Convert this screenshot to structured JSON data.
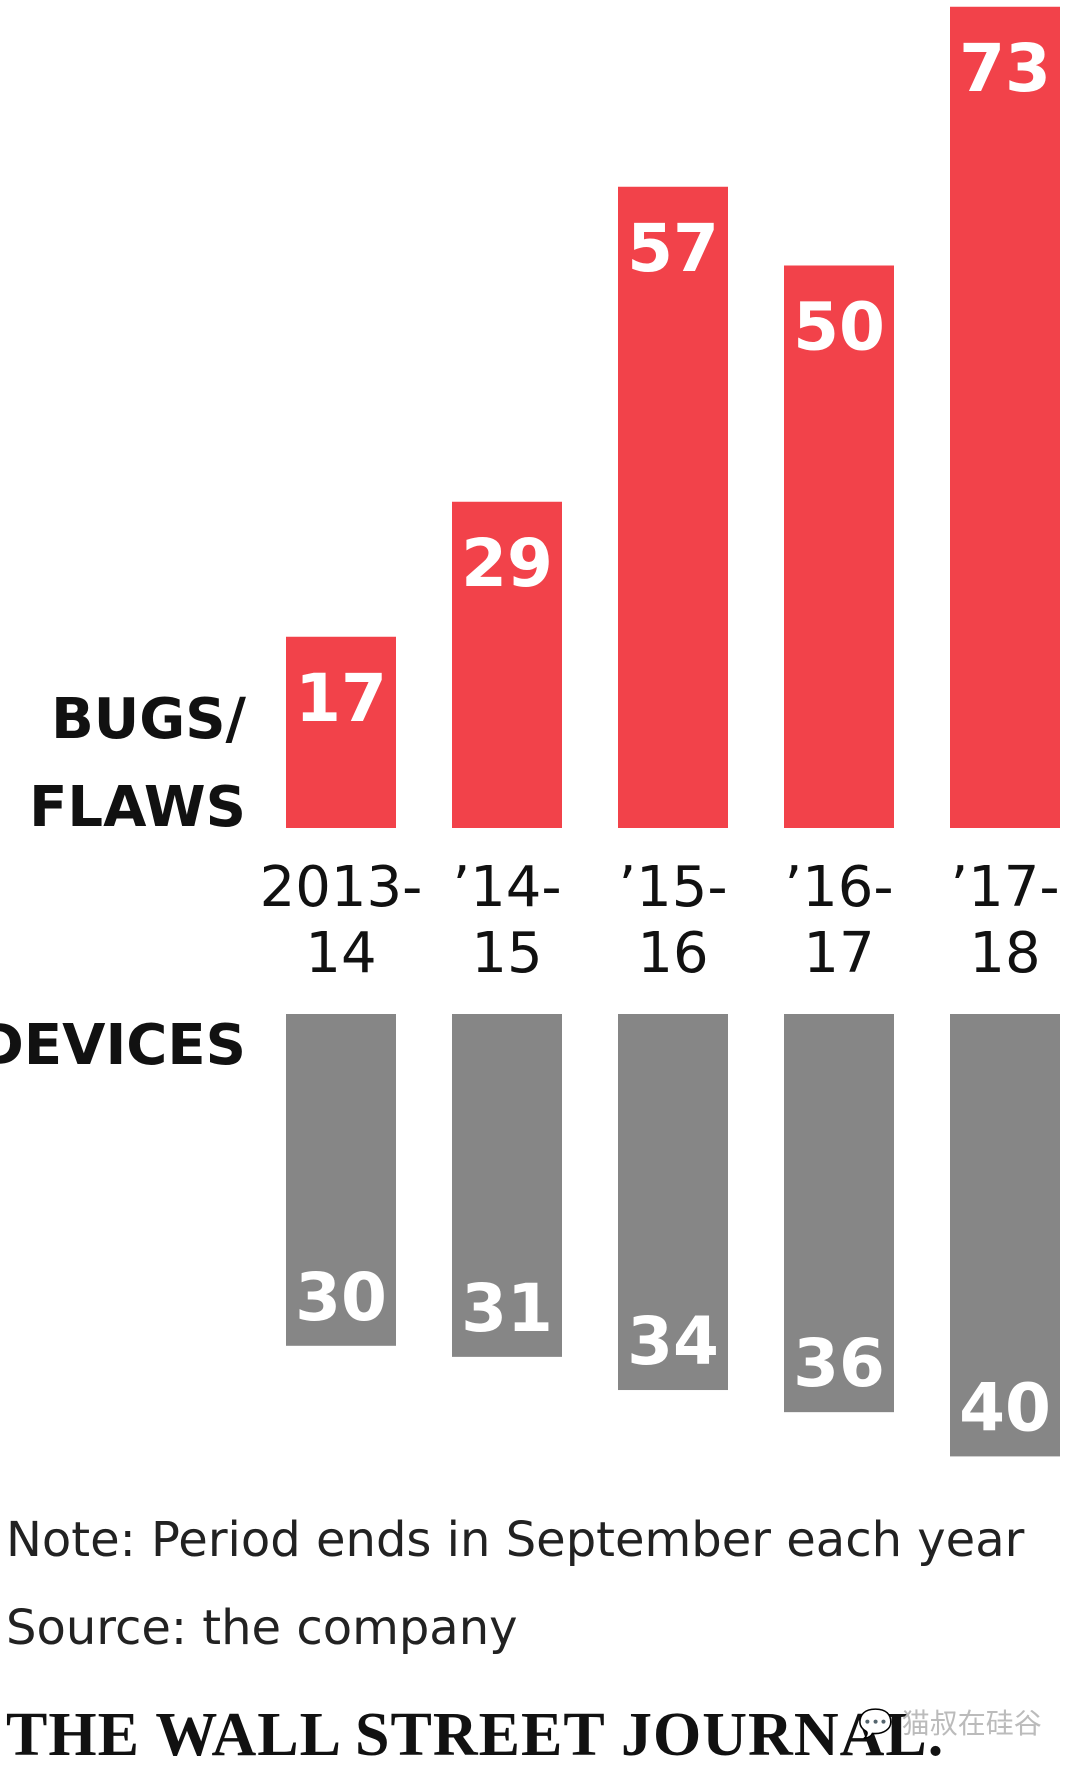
{
  "chart_data": {
    "type": "bar",
    "categories": [
      "2013-\n14",
      "’14-\n15",
      "’15-\n16",
      "’16-\n17",
      "’17-\n18"
    ],
    "series": [
      {
        "name": "BUGS/\nFLAWS",
        "values": [
          17,
          29,
          57,
          50,
          73
        ],
        "color": "#f2424a",
        "direction": "up"
      },
      {
        "name": "DEVICES",
        "values": [
          30,
          31,
          34,
          36,
          40
        ],
        "color": "#868686",
        "direction": "down"
      }
    ],
    "legend": "left"
  },
  "notes": {
    "note": "Note: Period ends in September each year",
    "source": "Source: the company"
  },
  "footer": {
    "masthead": "THE WALL STREET JOURNAL.",
    "watermark": "猫叔在硅谷"
  }
}
